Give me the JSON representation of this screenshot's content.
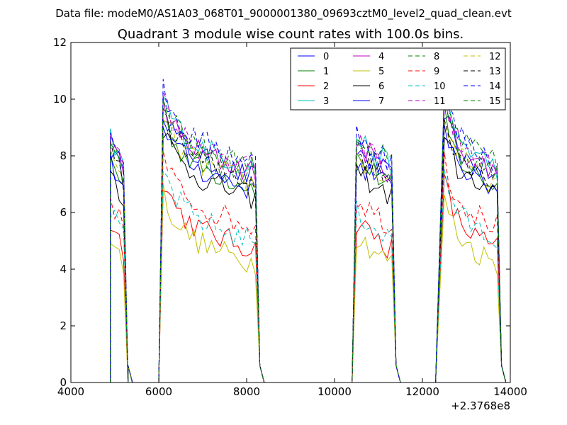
{
  "header": {
    "datafile": "Data file: modeM0/AS1A03_068T01_9000001380_09693cztM0_level2_quad_clean.evt"
  },
  "chart_data": {
    "type": "line",
    "title": "Quadrant 3 module wise count rates with 100.0s bins.",
    "xlabel": "",
    "ylabel": "",
    "xlim": [
      4000,
      14000
    ],
    "ylim": [
      0,
      12
    ],
    "x_offset_label": "+2.3768e8",
    "xticks": [
      4000,
      6000,
      8000,
      10000,
      12000,
      14000
    ],
    "yticks": [
      0,
      2,
      4,
      6,
      8,
      10,
      12
    ],
    "grid": false,
    "legend_position": "top-right",
    "legend_columns": 4,
    "segments": [
      {
        "x_start": 4900,
        "x_end": 5200,
        "x0": 5300
      },
      {
        "x_start": 6100,
        "x_end": 8200,
        "x0": 6000
      },
      {
        "x_start": 10500,
        "x_end": 11300,
        "x0": 10400
      },
      {
        "x_start": 12500,
        "x_end": 13700,
        "x0": 12300
      }
    ],
    "series": [
      {
        "name": "0",
        "color": "#0000ff",
        "style": "solid",
        "level": 8.2
      },
      {
        "name": "1",
        "color": "#008000",
        "style": "solid",
        "level": 7.9
      },
      {
        "name": "2",
        "color": "#ff0000",
        "style": "solid",
        "level": 5.7
      },
      {
        "name": "3",
        "color": "#00bfbf",
        "style": "solid",
        "level": 8.6
      },
      {
        "name": "4",
        "color": "#bf00bf",
        "style": "solid",
        "level": 8.4
      },
      {
        "name": "5",
        "color": "#bfbf00",
        "style": "solid",
        "level": 5.2
      },
      {
        "name": "6",
        "color": "#000000",
        "style": "solid",
        "level": 7.5
      },
      {
        "name": "7",
        "color": "#0000ff",
        "style": "solid",
        "level": 7.8
      },
      {
        "name": "8",
        "color": "#008000",
        "style": "dashed",
        "level": 8.7
      },
      {
        "name": "9",
        "color": "#ff0000",
        "style": "dashed",
        "level": 6.5
      },
      {
        "name": "10",
        "color": "#00bfbf",
        "style": "dashed",
        "level": 6.0
      },
      {
        "name": "11",
        "color": "#bf00bf",
        "style": "dashed",
        "level": 8.5
      },
      {
        "name": "12",
        "color": "#bfbf00",
        "style": "dashed",
        "level": 8.0
      },
      {
        "name": "13",
        "color": "#000000",
        "style": "dashed",
        "level": 8.1
      },
      {
        "name": "14",
        "color": "#0000ff",
        "style": "dashed",
        "level": 8.8
      },
      {
        "name": "15",
        "color": "#008000",
        "style": "dashed",
        "level": 8.3
      }
    ]
  }
}
